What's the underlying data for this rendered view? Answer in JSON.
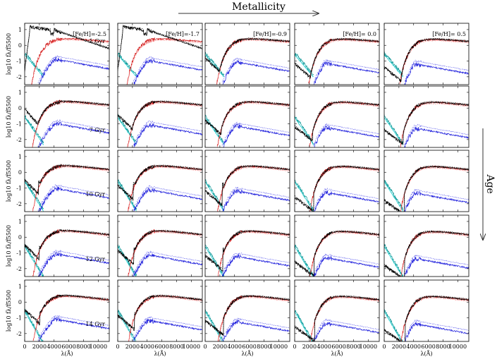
{
  "figure": {
    "metallicity_label": "Metallicity",
    "age_label": "Age",
    "xlabel": "λ(Å)",
    "ylabel": "log10 fλ/f5500"
  },
  "chart_data": {
    "type": "line",
    "columns": [
      {
        "feh": -2.5,
        "label": "[Fe/H]=-2.5"
      },
      {
        "feh": -1.7,
        "label": "[Fe/H]=-1.7"
      },
      {
        "feh": -0.9,
        "label": "[Fe/H]=-0.9"
      },
      {
        "feh": 0.0,
        "label": "[Fe/H]= 0.0"
      },
      {
        "feh": 0.5,
        "label": "[Fe/H]= 0.5"
      }
    ],
    "rows": [
      {
        "age_gyr": 1,
        "label": "1 Gyr"
      },
      {
        "age_gyr": 7,
        "label": "7 Gyr"
      },
      {
        "age_gyr": 10,
        "label": "10 Gyr"
      },
      {
        "age_gyr": 12,
        "label": "12 Gyr"
      },
      {
        "age_gyr": 14,
        "label": "14 Gyr"
      }
    ],
    "xlim": [
      0,
      11500
    ],
    "ylim": [
      -2.5,
      1.4
    ],
    "xticks": [
      0,
      2000,
      4000,
      6000,
      8000,
      10000
    ],
    "yticks": [
      -2,
      -1,
      0,
      1
    ],
    "series_colors": {
      "total_solid": "#000000",
      "total_dotted": "#000000",
      "cool_component": "#cc1111",
      "cool_dotted": "#ff7777",
      "blue_component": "#2222dd",
      "blue_dotted": "#6666ee",
      "hot_component": "#00cccc",
      "hot_teal": "#119999"
    }
  }
}
